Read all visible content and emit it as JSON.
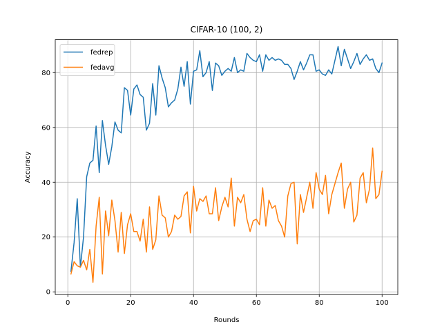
{
  "chart_data": {
    "type": "line",
    "title": "CIFAR-10 (100, 2)",
    "xlabel": "Rounds",
    "ylabel": "Accuracy",
    "xlim": [
      -4,
      105
    ],
    "ylim": [
      -1,
      92
    ],
    "xticks": [
      0,
      20,
      40,
      60,
      80,
      100
    ],
    "yticks": [
      0,
      20,
      40,
      60,
      80
    ],
    "grid": true,
    "legend_location": "top-left",
    "x": [
      1,
      2,
      3,
      4,
      5,
      6,
      7,
      8,
      9,
      10,
      11,
      12,
      13,
      14,
      15,
      16,
      17,
      18,
      19,
      20,
      21,
      22,
      23,
      24,
      25,
      26,
      27,
      28,
      29,
      30,
      31,
      32,
      33,
      34,
      35,
      36,
      37,
      38,
      39,
      40,
      41,
      42,
      43,
      44,
      45,
      46,
      47,
      48,
      49,
      50,
      51,
      52,
      53,
      54,
      55,
      56,
      57,
      58,
      59,
      60,
      61,
      62,
      63,
      64,
      65,
      66,
      67,
      68,
      69,
      70,
      71,
      72,
      73,
      74,
      75,
      76,
      77,
      78,
      79,
      80,
      81,
      82,
      83,
      84,
      85,
      86,
      87,
      88,
      89,
      90,
      91,
      92,
      93,
      94,
      95,
      96,
      97,
      98,
      99,
      100
    ],
    "series": [
      {
        "name": "fedrep",
        "color": "#1f77b4",
        "values": [
          7.5,
          18,
          34,
          9,
          20,
          42,
          47,
          48,
          60.5,
          43.5,
          62.5,
          53.5,
          46.5,
          53,
          62,
          59,
          58,
          74.5,
          73.5,
          64.5,
          74,
          75.5,
          72,
          71,
          59,
          61.5,
          76,
          64.5,
          82.5,
          78,
          74.5,
          67.5,
          69,
          70,
          74,
          82,
          75,
          84,
          68.5,
          80.5,
          81,
          88,
          78.5,
          80,
          84,
          73.5,
          83.5,
          82.5,
          79,
          80.5,
          81.5,
          80.5,
          85.5,
          80,
          81,
          80.5,
          87,
          85.5,
          84.5,
          84,
          86.5,
          80.5,
          86.5,
          84.5,
          85.5,
          84.5,
          85,
          84.5,
          83,
          83,
          81.5,
          77.5,
          80.5,
          84,
          81,
          83.5,
          86.5,
          86.5,
          80.5,
          81,
          79.5,
          79,
          81,
          79.5,
          84.5,
          89.5,
          82.5,
          88.5,
          85,
          81.5,
          84,
          87,
          83,
          85,
          86.5,
          84.5,
          85,
          81.5,
          80,
          83.5
        ]
      },
      {
        "name": "fedavg",
        "color": "#ff7f0e",
        "values": [
          6.5,
          11,
          9.5,
          9,
          11.5,
          8,
          15.5,
          3.5,
          24,
          34.5,
          6.5,
          29.5,
          20.5,
          33.5,
          26,
          14.5,
          29,
          14,
          24.5,
          28.5,
          22,
          22,
          18.5,
          26.5,
          14.5,
          31,
          15.5,
          19,
          35,
          28,
          27,
          20,
          22,
          28,
          26.5,
          27.5,
          35,
          36.5,
          21.5,
          38.5,
          29.5,
          34,
          33,
          35,
          28.5,
          28.5,
          38,
          26,
          31,
          34.5,
          31,
          41.5,
          24,
          34.5,
          32.5,
          35.5,
          26.5,
          22,
          26,
          26.5,
          24.5,
          38,
          24,
          33.5,
          30.5,
          31.5,
          26,
          24,
          20,
          35,
          39.5,
          40,
          17.5,
          35.5,
          29,
          34.5,
          40,
          30.5,
          43.5,
          37.5,
          35.5,
          42.5,
          28.5,
          35.5,
          39.5,
          43.5,
          47,
          30.5,
          37.5,
          40,
          25.5,
          28,
          41.5,
          43.5,
          32.5,
          37.5,
          52.5,
          34,
          35.5,
          44
        ]
      }
    ]
  }
}
